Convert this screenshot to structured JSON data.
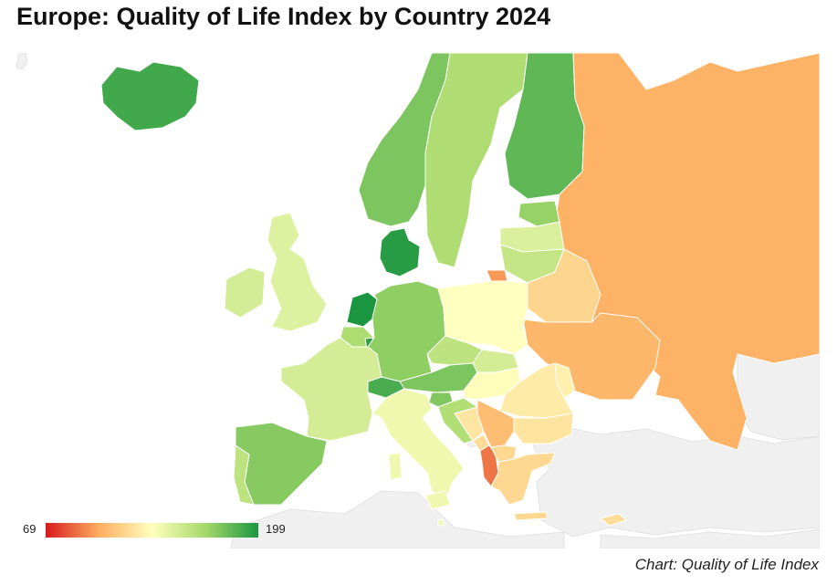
{
  "title": "Europe: Quality of Life Index by Country 2024",
  "caption": "Chart: Quality of Life Index",
  "legend": {
    "min_label": "69",
    "max_label": "199",
    "min": 69,
    "max": 199,
    "colors": [
      "#d7191c",
      "#fdae61",
      "#ffffbf",
      "#a6d96a",
      "#1a9641"
    ]
  },
  "colors": {
    "ocean": "#ffffff",
    "non_data_land": "#f0f0f0",
    "border": "#ffffff"
  },
  "chart_data": {
    "type": "choropleth",
    "title": "Europe: Quality of Life Index by Country 2024",
    "scale": {
      "min": 69,
      "max": 199
    },
    "regions": [
      {
        "id": "iceland",
        "value": 190
      },
      {
        "id": "norway",
        "value": 176
      },
      {
        "id": "sweden",
        "value": 163
      },
      {
        "id": "finland",
        "value": 183
      },
      {
        "id": "russia",
        "value": 103
      },
      {
        "id": "estonia",
        "value": 170
      },
      {
        "id": "latvia",
        "value": 147
      },
      {
        "id": "lithuania",
        "value": 156
      },
      {
        "id": "kaliningrad",
        "value": 97
      },
      {
        "id": "belarus",
        "value": 117
      },
      {
        "id": "ukraine",
        "value": 105
      },
      {
        "id": "moldova",
        "value": 128
      },
      {
        "id": "denmark",
        "value": 196
      },
      {
        "id": "ireland",
        "value": 150
      },
      {
        "id": "united-kingdom",
        "value": 146
      },
      {
        "id": "netherlands",
        "value": 199
      },
      {
        "id": "belgium",
        "value": 164
      },
      {
        "id": "luxembourg",
        "value": 194
      },
      {
        "id": "germany",
        "value": 172
      },
      {
        "id": "poland",
        "value": 134
      },
      {
        "id": "czechia",
        "value": 158
      },
      {
        "id": "slovakia",
        "value": 150
      },
      {
        "id": "austria",
        "value": 176
      },
      {
        "id": "switzerland",
        "value": 188
      },
      {
        "id": "france",
        "value": 150
      },
      {
        "id": "spain",
        "value": 174
      },
      {
        "id": "portugal",
        "value": 158
      },
      {
        "id": "italy",
        "value": 140
      },
      {
        "id": "slovenia",
        "value": 175
      },
      {
        "id": "croatia",
        "value": 162
      },
      {
        "id": "hungary",
        "value": 133
      },
      {
        "id": "romania",
        "value": 126
      },
      {
        "id": "bulgaria",
        "value": 123
      },
      {
        "id": "serbia",
        "value": 108
      },
      {
        "id": "bosnia-herzegovina",
        "value": 124
      },
      {
        "id": "montenegro",
        "value": 120
      },
      {
        "id": "albania",
        "value": 89
      },
      {
        "id": "north-macedonia",
        "value": 118
      },
      {
        "id": "greece",
        "value": 118
      },
      {
        "id": "cyprus",
        "value": 120
      },
      {
        "id": "malta",
        "value": 140
      }
    ]
  }
}
